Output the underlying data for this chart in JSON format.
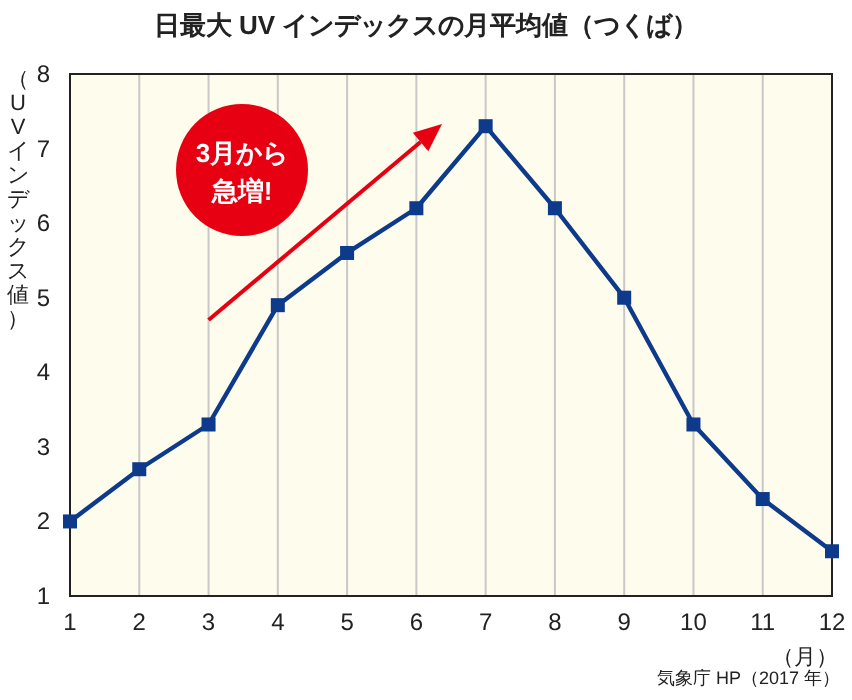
{
  "chart_data": {
    "type": "line",
    "title": "日最大 UV インデックスの月平均値（つくば）",
    "xlabel": "（月）",
    "ylabel": "（UVインデックス値）",
    "x": [
      1,
      2,
      3,
      4,
      5,
      6,
      7,
      8,
      9,
      10,
      11,
      12
    ],
    "series": [
      {
        "color": "#0d3a8a",
        "values": [
          2.0,
          2.7,
          3.3,
          4.9,
          5.6,
          6.2,
          7.3,
          6.2,
          5.0,
          3.3,
          2.3,
          1.6
        ]
      }
    ],
    "xlim": [
      1,
      12
    ],
    "xticks": [
      1,
      2,
      3,
      4,
      5,
      6,
      7,
      8,
      9,
      10,
      11,
      12
    ],
    "ylim": [
      1,
      8
    ],
    "yticks": [
      1,
      2,
      3,
      4,
      5,
      6,
      7,
      8
    ],
    "grid": "x",
    "marker": "square",
    "line_style": "solid",
    "annotations": [
      "3月から急増!",
      "気象庁 HP（2017 年）"
    ]
  }
}
